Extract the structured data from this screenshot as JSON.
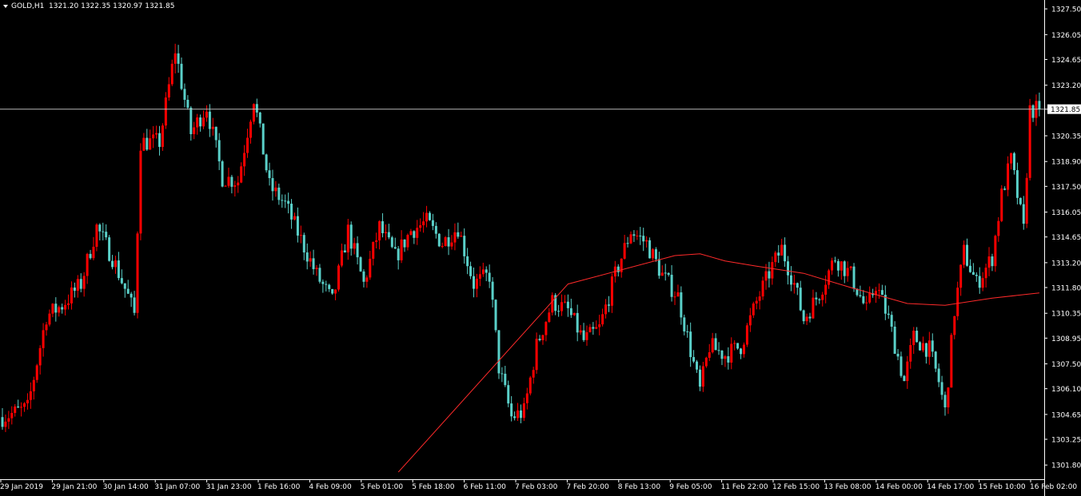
{
  "header": {
    "symbol": "GOLD,H1",
    "ohlc": "1321.20 1322.35 1320.97 1321.85"
  },
  "colors": {
    "background": "#000000",
    "bull": "#ff0000",
    "bear": "#5ad0c9",
    "ma": "#ff2a2a",
    "axis": "#ffffff",
    "price_line": "#c8c8c8"
  },
  "chart_data": {
    "type": "candlestick",
    "symbol": "GOLD",
    "timeframe": "H1",
    "current_price": 1321.85,
    "ylim": [
      1301.0,
      1328.0
    ],
    "y_ticks": [
      1301.8,
      1303.25,
      1304.65,
      1306.1,
      1307.5,
      1308.95,
      1310.35,
      1311.8,
      1313.2,
      1314.65,
      1316.05,
      1317.5,
      1318.9,
      1320.35,
      1321.85,
      1323.2,
      1324.65,
      1326.05,
      1327.5
    ],
    "x_ticks": [
      "29 Jan 2019",
      "29 Jan 21:00",
      "30 Jan 14:00",
      "31 Jan 07:00",
      "31 Jan 23:00",
      "1 Feb 16:00",
      "4 Feb 09:00",
      "5 Feb 01:00",
      "5 Feb 18:00",
      "6 Feb 11:00",
      "7 Feb 03:00",
      "7 Feb 20:00",
      "8 Feb 13:00",
      "9 Feb 05:00",
      "11 Feb 22:00",
      "12 Feb 15:00",
      "13 Feb 08:00",
      "14 Feb 00:00",
      "14 Feb 17:00",
      "15 Feb 10:00",
      "16 Feb 02:00"
    ],
    "price_anchors": [
      [
        0,
        1304.5
      ],
      [
        8,
        1305.0
      ],
      [
        14,
        1310.2
      ],
      [
        19,
        1310.8
      ],
      [
        25,
        1312.0
      ],
      [
        30,
        1315.2
      ],
      [
        35,
        1313.5
      ],
      [
        40,
        1311.3
      ],
      [
        42,
        1310.3
      ],
      [
        44,
        1320.0
      ],
      [
        50,
        1320.0
      ],
      [
        55,
        1325.2
      ],
      [
        60,
        1320.5
      ],
      [
        65,
        1322.0
      ],
      [
        70,
        1318.0
      ],
      [
        75,
        1317.8
      ],
      [
        80,
        1322.5
      ],
      [
        85,
        1317.5
      ],
      [
        90,
        1316.5
      ],
      [
        95,
        1314.5
      ],
      [
        100,
        1312.5
      ],
      [
        105,
        1311.0
      ],
      [
        110,
        1315.0
      ],
      [
        115,
        1312.0
      ],
      [
        120,
        1315.2
      ],
      [
        125,
        1313.5
      ],
      [
        130,
        1315.0
      ],
      [
        135,
        1315.5
      ],
      [
        140,
        1314.3
      ],
      [
        145,
        1315.2
      ],
      [
        150,
        1312.0
      ],
      [
        155,
        1312.5
      ],
      [
        158,
        1307.3
      ],
      [
        162,
        1304.5
      ],
      [
        166,
        1304.8
      ],
      [
        170,
        1308.5
      ],
      [
        175,
        1311.0
      ],
      [
        180,
        1310.5
      ],
      [
        185,
        1308.8
      ],
      [
        190,
        1309.5
      ],
      [
        195,
        1312.5
      ],
      [
        200,
        1315.0
      ],
      [
        205,
        1314.3
      ],
      [
        210,
        1312.5
      ],
      [
        215,
        1311.3
      ],
      [
        220,
        1307.5
      ],
      [
        222,
        1306.0
      ],
      [
        225,
        1308.5
      ],
      [
        230,
        1308.0
      ],
      [
        235,
        1308.5
      ],
      [
        240,
        1311.0
      ],
      [
        245,
        1313.0
      ],
      [
        248,
        1314.0
      ],
      [
        252,
        1312.0
      ],
      [
        255,
        1310.0
      ],
      [
        260,
        1311.5
      ],
      [
        265,
        1313.5
      ],
      [
        270,
        1312.5
      ],
      [
        275,
        1310.5
      ],
      [
        278,
        1312.0
      ],
      [
        282,
        1310.0
      ],
      [
        287,
        1306.5
      ],
      [
        290,
        1309.0
      ],
      [
        295,
        1308.3
      ],
      [
        298,
        1306.5
      ],
      [
        300,
        1304.8
      ],
      [
        303,
        1310.5
      ],
      [
        306,
        1313.8
      ],
      [
        310,
        1312.0
      ],
      [
        315,
        1313.5
      ],
      [
        318,
        1317.0
      ],
      [
        321,
        1319.0
      ],
      [
        325,
        1315.0
      ],
      [
        327,
        1321.8
      ],
      [
        330,
        1321.85
      ]
    ],
    "moving_average": [
      [
        126,
        1301.4
      ],
      [
        180,
        1312.0
      ],
      [
        214,
        1313.6
      ],
      [
        222,
        1313.7
      ],
      [
        230,
        1313.3
      ],
      [
        240,
        1313.0
      ],
      [
        255,
        1312.6
      ],
      [
        270,
        1311.8
      ],
      [
        288,
        1310.9
      ],
      [
        300,
        1310.8
      ],
      [
        315,
        1311.2
      ],
      [
        330,
        1311.5
      ]
    ]
  }
}
